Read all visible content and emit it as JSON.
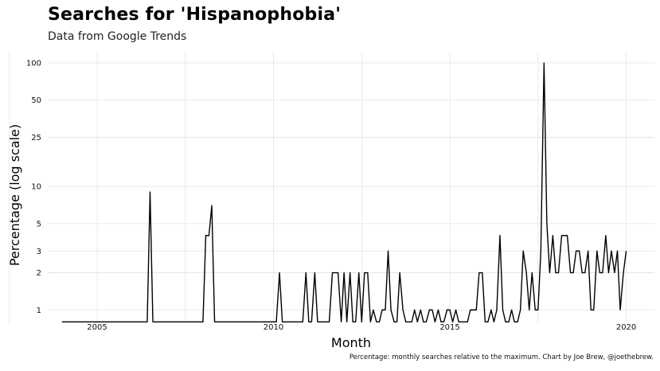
{
  "header": {
    "title": "Searches for 'Hispanophobia'",
    "subtitle": "Data from Google Trends",
    "caption": "Percentage: monthly searches relative to the maximum. Chart by Joe Brew, @joethebrew."
  },
  "chart_data": {
    "type": "line",
    "title": "Searches for 'Hispanophobia'",
    "subtitle": "Data from Google Trends",
    "xlabel": "Month",
    "ylabel": "Percentage (log scale)",
    "y_scale": "log",
    "xlim": [
      2003.6,
      2020.8
    ],
    "ylim": [
      0.78,
      125
    ],
    "x_ticks": [
      2005,
      2010,
      2015,
      2020
    ],
    "x_tick_labels": [
      "2005",
      "2010",
      "2015",
      "2020"
    ],
    "y_ticks": [
      1,
      2,
      3,
      5,
      10,
      25,
      50,
      100
    ],
    "y_tick_labels": [
      "1",
      "2",
      "3",
      "5",
      "10",
      "25",
      "50",
      "100"
    ],
    "grid": true,
    "line_color": "#000000",
    "series": [
      {
        "points": [
          [
            2004.0,
            0.8
          ],
          [
            2006.42,
            0.8
          ],
          [
            2006.5,
            9
          ],
          [
            2006.58,
            0.8
          ],
          [
            2008.0,
            0.8
          ],
          [
            2008.08,
            4
          ],
          [
            2008.17,
            4
          ],
          [
            2008.25,
            7
          ],
          [
            2008.33,
            0.8
          ],
          [
            2010.08,
            0.8
          ],
          [
            2010.17,
            2
          ],
          [
            2010.25,
            0.8
          ],
          [
            2010.83,
            0.8
          ],
          [
            2010.92,
            2
          ],
          [
            2011.0,
            0.8
          ],
          [
            2011.08,
            0.8
          ],
          [
            2011.17,
            2
          ],
          [
            2011.25,
            0.8
          ],
          [
            2011.58,
            0.8
          ],
          [
            2011.67,
            2
          ],
          [
            2011.75,
            2
          ],
          [
            2011.83,
            2
          ],
          [
            2011.92,
            0.8
          ],
          [
            2012.0,
            2
          ],
          [
            2012.08,
            0.8
          ],
          [
            2012.17,
            2
          ],
          [
            2012.25,
            0.8
          ],
          [
            2012.33,
            0.8
          ],
          [
            2012.42,
            2
          ],
          [
            2012.5,
            0.8
          ],
          [
            2012.58,
            2
          ],
          [
            2012.67,
            2
          ],
          [
            2012.75,
            0.8
          ],
          [
            2012.83,
            1
          ],
          [
            2012.92,
            0.8
          ],
          [
            2013.0,
            0.8
          ],
          [
            2013.08,
            1
          ],
          [
            2013.17,
            1
          ],
          [
            2013.25,
            3
          ],
          [
            2013.33,
            1
          ],
          [
            2013.42,
            0.8
          ],
          [
            2013.5,
            0.8
          ],
          [
            2013.58,
            2
          ],
          [
            2013.67,
            1
          ],
          [
            2013.75,
            0.8
          ],
          [
            2013.92,
            0.8
          ],
          [
            2014.0,
            1
          ],
          [
            2014.08,
            0.8
          ],
          [
            2014.17,
            1
          ],
          [
            2014.25,
            0.8
          ],
          [
            2014.33,
            0.8
          ],
          [
            2014.42,
            1
          ],
          [
            2014.5,
            1
          ],
          [
            2014.58,
            0.8
          ],
          [
            2014.67,
            1
          ],
          [
            2014.75,
            0.8
          ],
          [
            2014.83,
            0.8
          ],
          [
            2014.92,
            1
          ],
          [
            2015.0,
            1
          ],
          [
            2015.08,
            0.8
          ],
          [
            2015.17,
            1
          ],
          [
            2015.25,
            0.8
          ],
          [
            2015.5,
            0.8
          ],
          [
            2015.58,
            1
          ],
          [
            2015.67,
            1
          ],
          [
            2015.75,
            1
          ],
          [
            2015.83,
            2
          ],
          [
            2015.92,
            2
          ],
          [
            2016.0,
            0.8
          ],
          [
            2016.08,
            0.8
          ],
          [
            2016.17,
            1
          ],
          [
            2016.25,
            0.8
          ],
          [
            2016.33,
            1
          ],
          [
            2016.42,
            4
          ],
          [
            2016.5,
            1
          ],
          [
            2016.58,
            0.8
          ],
          [
            2016.67,
            0.8
          ],
          [
            2016.75,
            1
          ],
          [
            2016.83,
            0.8
          ],
          [
            2016.92,
            0.8
          ],
          [
            2017.0,
            1
          ],
          [
            2017.08,
            3
          ],
          [
            2017.17,
            2
          ],
          [
            2017.25,
            1
          ],
          [
            2017.33,
            2
          ],
          [
            2017.42,
            1
          ],
          [
            2017.5,
            1
          ],
          [
            2017.58,
            3
          ],
          [
            2017.67,
            100
          ],
          [
            2017.75,
            5
          ],
          [
            2017.83,
            2
          ],
          [
            2017.92,
            4
          ],
          [
            2018.0,
            2
          ],
          [
            2018.08,
            2
          ],
          [
            2018.17,
            4
          ],
          [
            2018.25,
            4
          ],
          [
            2018.33,
            4
          ],
          [
            2018.42,
            2
          ],
          [
            2018.5,
            2
          ],
          [
            2018.58,
            3
          ],
          [
            2018.67,
            3
          ],
          [
            2018.75,
            2
          ],
          [
            2018.83,
            2
          ],
          [
            2018.92,
            3
          ],
          [
            2019.0,
            1
          ],
          [
            2019.08,
            1
          ],
          [
            2019.17,
            3
          ],
          [
            2019.25,
            2
          ],
          [
            2019.33,
            2
          ],
          [
            2019.42,
            4
          ],
          [
            2019.5,
            2
          ],
          [
            2019.58,
            3
          ],
          [
            2019.67,
            2
          ],
          [
            2019.75,
            3
          ],
          [
            2019.83,
            1
          ],
          [
            2019.92,
            2
          ],
          [
            2020.0,
            3
          ]
        ]
      }
    ]
  }
}
